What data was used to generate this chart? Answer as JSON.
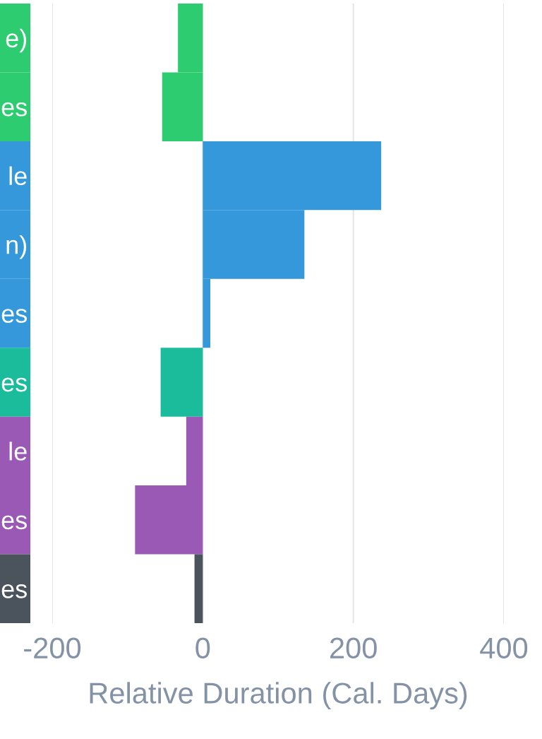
{
  "chart_data": {
    "type": "bar",
    "orientation": "horizontal",
    "xlabel": "Relative Duration (Cal. Days)",
    "categories": [
      "e)",
      "es",
      "le",
      "n)",
      "es",
      "es",
      "le",
      "es",
      "es"
    ],
    "values": [
      -33,
      -54,
      237,
      135,
      10,
      -56,
      -22,
      -90,
      -11
    ],
    "colors": [
      "#2ecc71",
      "#2ecc71",
      "#3498db",
      "#3498db",
      "#3498db",
      "#1abc9c",
      "#9b59b6",
      "#9b59b6",
      "#4b535d"
    ],
    "xlim": [
      -200,
      400
    ],
    "xticks": [
      -200,
      0,
      200,
      400
    ],
    "grid": "x"
  }
}
